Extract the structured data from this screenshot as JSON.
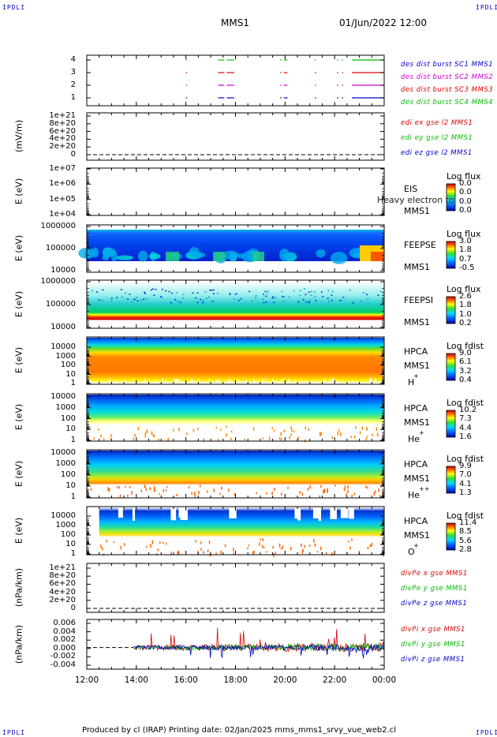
{
  "corners": {
    "top_left": "IPDLI",
    "top_right": "IPDLI",
    "bottom_left": "IPDLI",
    "bottom_right": "IPDLI"
  },
  "header": {
    "spacecraft": "MMS1",
    "datetime": "01/Jun/2022 12:00"
  },
  "footer": "Produced by cl (IRAP)   Printing date: 02/Jan/2025   mms_mms1_srvy_vue_web2.cl",
  "colors": {
    "blue": "#0000cc",
    "red": "#dd0000",
    "green": "#00bb00",
    "magenta": "#cc00cc"
  },
  "chart_data": {
    "type": "line",
    "x_axis": {
      "ticks": [
        "12:00",
        "14:00",
        "16:00",
        "18:00",
        "20:00",
        "22:00",
        "00:00"
      ],
      "range_hours": [
        12,
        24
      ]
    },
    "panels": [
      {
        "id": "burst",
        "type": "scatter",
        "ylabel": "",
        "yticks": [
          "4",
          "3",
          "2",
          "1"
        ],
        "legend": [
          {
            "label": "des dist burst SC1 MMS1",
            "color": "#0000cc"
          },
          {
            "label": "des dist burst SC2 MMS2",
            "color": "#cc00cc"
          },
          {
            "label": "des dist burst SC3 MMS3",
            "color": "#dd0000"
          },
          {
            "label": "des dist burst SC4 MMS4",
            "color": "#00bb00"
          }
        ],
        "intervals_hours": [
          [
            16.0,
            16.05
          ],
          [
            17.3,
            17.55
          ],
          [
            17.65,
            17.95
          ],
          [
            19.8,
            19.85
          ],
          [
            19.95,
            20.1
          ],
          [
            21.2,
            21.25
          ],
          [
            22.1,
            22.15
          ],
          [
            22.3,
            22.35
          ],
          [
            22.7,
            24.0
          ]
        ]
      },
      {
        "id": "edi",
        "ylabel": "(mV/m)",
        "yticks": [
          "1e+21",
          "8e+20",
          "6e+20",
          "4e+20",
          "2e+20",
          "0"
        ],
        "legend": [
          {
            "label": "edi ex gse l2 MMS1",
            "color": "#dd0000"
          },
          {
            "label": "edi ey gse l2 MMS1",
            "color": "#00bb00"
          },
          {
            "label": "edi ez gse l2 MMS1",
            "color": "#0000cc"
          }
        ]
      },
      {
        "id": "eis",
        "type": "heatmap",
        "ylabel": "E (eV)",
        "yticks": [
          "1e+07",
          "1e+06",
          "1e+05",
          "1e+04"
        ],
        "instrument": [
          "EIS",
          "MMS1"
        ],
        "overlay_text": "Heavy electron to",
        "colorbar": {
          "title": "Log flux",
          "values": [
            "0.0",
            "0.0",
            "0.0",
            "0.0"
          ]
        }
      },
      {
        "id": "feepse",
        "type": "heatmap",
        "ylabel": "E (eV)",
        "yticks": [
          "1000000",
          "100000",
          "10000"
        ],
        "instrument": [
          "FEEPSE",
          "MMS1"
        ],
        "colorbar": {
          "title": "Log flux",
          "values": [
            "3.0",
            "1.8",
            "0.7",
            "-0.5"
          ]
        }
      },
      {
        "id": "feepsi",
        "type": "heatmap",
        "ylabel": "E (eV)",
        "yticks": [
          "1000000",
          "100000",
          "10000"
        ],
        "instrument": [
          "FEEPSI",
          "MMS1"
        ],
        "colorbar": {
          "title": "Log flux",
          "values": [
            "2.6",
            "1.8",
            "1.0",
            "0.2"
          ]
        }
      },
      {
        "id": "hpca_h",
        "type": "heatmap",
        "ylabel": "E (eV)",
        "yticks": [
          "10000",
          "1000",
          "100",
          "10",
          "1"
        ],
        "instrument": [
          "HPCA",
          "MMS1"
        ],
        "species": "H",
        "species_sup": "+",
        "colorbar": {
          "title": "Log fdist",
          "values": [
            "9.0",
            "6.1",
            "3.2",
            "0.4"
          ]
        }
      },
      {
        "id": "hpca_he",
        "type": "heatmap",
        "ylabel": "E (eV)",
        "yticks": [
          "10000",
          "1000",
          "100",
          "10",
          "1"
        ],
        "instrument": [
          "HPCA",
          "MMS1"
        ],
        "species": "He",
        "species_sup": "+",
        "colorbar": {
          "title": "Log fdist",
          "values": [
            "10.2",
            "7.3",
            "4.4",
            "1.6"
          ]
        }
      },
      {
        "id": "hpca_hepp",
        "type": "heatmap",
        "ylabel": "E (eV)",
        "yticks": [
          "10000",
          "1000",
          "100",
          "10",
          "1"
        ],
        "instrument": [
          "HPCA",
          "MMS1"
        ],
        "species": "He",
        "species_sup": "++",
        "colorbar": {
          "title": "Log fdist",
          "values": [
            "9.9",
            "7.0",
            "4.1",
            "1.3"
          ]
        }
      },
      {
        "id": "hpca_o",
        "type": "heatmap",
        "ylabel": "E (eV)",
        "yticks": [
          "10000",
          "1000",
          "100",
          "10",
          "1"
        ],
        "instrument": [
          "HPCA",
          "MMS1"
        ],
        "species": "O",
        "species_sup": "+",
        "colorbar": {
          "title": "Log fdist",
          "values": [
            "11.4",
            "8.5",
            "5.6",
            "2.8"
          ]
        }
      },
      {
        "id": "divpe",
        "ylabel": "(nPa/km)",
        "yticks": [
          "1e+21",
          "8e+20",
          "6e+20",
          "4e+20",
          "2e+20",
          "0"
        ],
        "legend": [
          {
            "label": "divPe x gse MMS1",
            "color": "#dd0000"
          },
          {
            "label": "divPe y gse MMS1",
            "color": "#00bb00"
          },
          {
            "label": "divPe z gse MMS1",
            "color": "#0000cc"
          }
        ]
      },
      {
        "id": "divpi",
        "ylabel": "(nPa/km)",
        "yticks": [
          "0.006",
          "0.004",
          "0.002",
          "0.000",
          "-0.002",
          "-0.004"
        ],
        "yrange": [
          -0.005,
          0.0065
        ],
        "data_start_hour": 13.9,
        "legend": [
          {
            "label": "divPi x gse MMS1",
            "color": "#dd0000"
          },
          {
            "label": "divPi y gse MMS1",
            "color": "#00bb00"
          },
          {
            "label": "divPi z gse MMS1",
            "color": "#0000cc"
          }
        ]
      }
    ]
  }
}
